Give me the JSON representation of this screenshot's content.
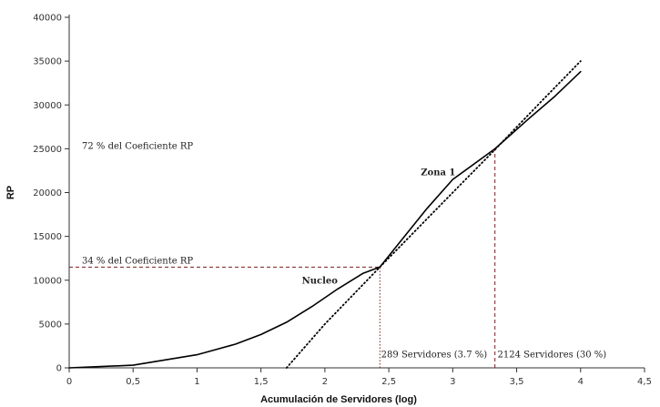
{
  "chart_data": {
    "type": "line",
    "xlabel": "Acumulación de Servidores (log)",
    "ylabel": "RP",
    "xlim": [
      0,
      4.5
    ],
    "ylim": [
      0,
      40000
    ],
    "x_ticks": [
      "0",
      "0,5",
      "1",
      "1,5",
      "2",
      "2,5",
      "3",
      "3,5",
      "4",
      "4,5"
    ],
    "y_ticks": [
      "0",
      "5000",
      "10000",
      "15000",
      "20000",
      "25000",
      "30000",
      "35000",
      "40000"
    ],
    "grid": false,
    "legend": "none",
    "series": [
      {
        "style": "solid",
        "color": "#000000",
        "x": [
          0,
          0.5,
          1.0,
          1.3,
          1.5,
          1.7,
          1.9,
          2.1,
          2.3,
          2.43,
          2.6,
          2.8,
          3.0,
          3.33,
          3.6,
          3.8,
          4.0
        ],
        "y": [
          0,
          300,
          1500,
          2700,
          3800,
          5200,
          7000,
          9000,
          10800,
          11500,
          14600,
          18200,
          21500,
          25000,
          28500,
          31000,
          33800
        ]
      },
      {
        "style": "dotted",
        "color": "#000000",
        "x": [
          1.7,
          2.0,
          2.43,
          3.0,
          3.33,
          3.7,
          4.0
        ],
        "y": [
          0,
          5000,
          11500,
          20000,
          24900,
          30500,
          35000
        ]
      }
    ],
    "reference_lines": [
      {
        "type": "horizontal",
        "y": 11500,
        "x_from": 0,
        "x_to": 2.43,
        "style": "dashed",
        "color": "#7a1f1f"
      },
      {
        "type": "vertical",
        "x": 2.43,
        "y_from": 0,
        "y_to": 11500,
        "style": "dotted",
        "color": "#7a1f1f"
      },
      {
        "type": "vertical",
        "x": 3.33,
        "y_from": 0,
        "y_to": 24900,
        "style": "dashed",
        "color": "#7a1f1f"
      }
    ],
    "annotations": [
      {
        "text": "72 % del Coeficiente RP",
        "x": 0.1,
        "y": 25000,
        "bold": false
      },
      {
        "text": "34 % del Coeficiente RP",
        "x": 0.1,
        "y": 11900,
        "bold": false
      },
      {
        "text": "Zona 1",
        "x": 2.75,
        "y": 22000,
        "bold": true
      },
      {
        "text": "Nucleo",
        "x": 1.82,
        "y": 9600,
        "bold": true
      },
      {
        "text": "289 Servidores (3.7 %)",
        "x": 2.44,
        "y": 1200,
        "bold": false
      },
      {
        "text": "2124 Servidores (30 %)",
        "x": 3.35,
        "y": 1200,
        "bold": false
      }
    ]
  }
}
